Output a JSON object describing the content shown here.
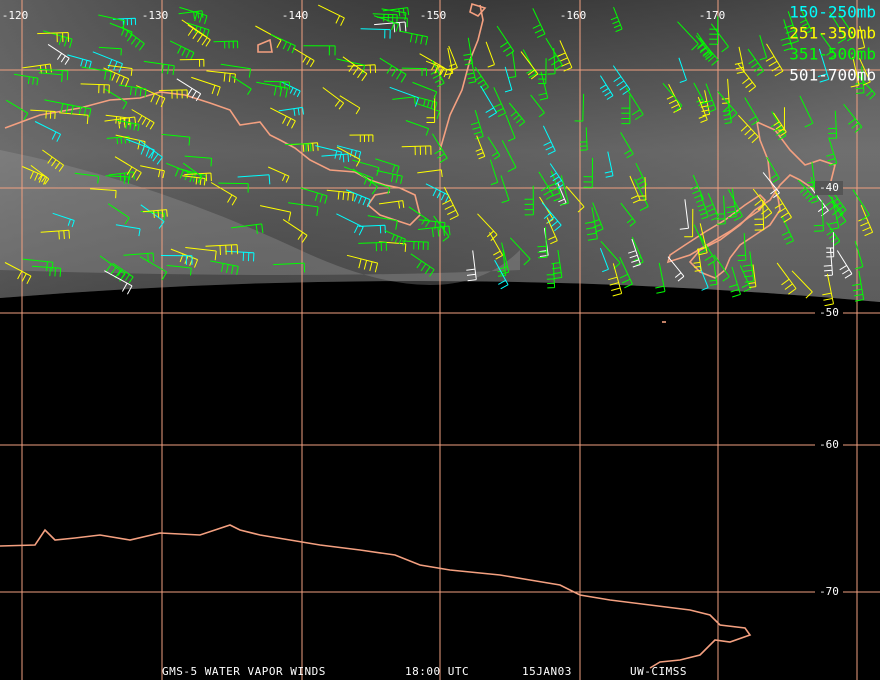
{
  "map": {
    "lon_labels": [
      "-120",
      "-130",
      "-140",
      "-150",
      "-160",
      "-170"
    ],
    "lat_labels": [
      "-40",
      "-50",
      "-60",
      "-70"
    ],
    "legend": [
      {
        "label": "150-250mb",
        "color": "#00ffff"
      },
      {
        "label": "251-350mb",
        "color": "#ffff00"
      },
      {
        "label": "351-500mb",
        "color": "#00ff00"
      },
      {
        "label": "501-700mb",
        "color": "#ffffff"
      }
    ],
    "footer": [
      "GMS-5 WATER VAPOR WINDS",
      "18:00 UTC",
      "15JAN03",
      "UW-CIMSS"
    ]
  }
}
